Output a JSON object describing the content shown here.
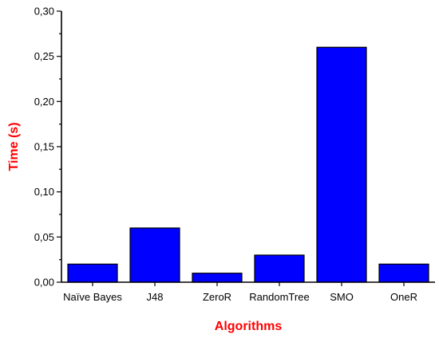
{
  "chart_data": {
    "type": "bar",
    "categories": [
      "Naïve Bayes",
      "J48",
      "ZeroR",
      "RandomTree",
      "SMO",
      "OneR"
    ],
    "values": [
      0.02,
      0.06,
      0.01,
      0.03,
      0.26,
      0.02
    ],
    "xlabel": "Algorithms",
    "ylabel": "Time (s)",
    "ylim": [
      0,
      0.3
    ],
    "yticks": [
      0.0,
      0.05,
      0.1,
      0.15,
      0.2,
      0.25,
      0.3
    ],
    "ytick_labels": [
      "0,00",
      "0,05",
      "0,10",
      "0,15",
      "0,20",
      "0,25",
      "0,30"
    ],
    "grid": false,
    "legend": "none",
    "colors": {
      "bar_fill": "#0000ff",
      "bar_stroke": "#000000",
      "axis_title": "#ff0000",
      "axis": "#000000"
    }
  }
}
